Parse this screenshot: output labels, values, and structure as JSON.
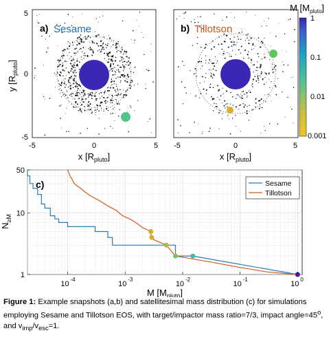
{
  "panel_a": {
    "letter": "a)",
    "name": "Sesame",
    "name_color": "#1f6fb2",
    "x_label_main": "x [R",
    "x_label_sub": "pluto",
    "x_label_end": "]",
    "y_label_main": "y [R",
    "y_label_sub": "pluto",
    "y_label_end": "]",
    "x_ticks": [
      "-5",
      "0",
      "5"
    ],
    "y_ticks": [
      "5",
      "0",
      "-5"
    ],
    "satellite_color": "#55c38b"
  },
  "panel_b": {
    "letter": "b)",
    "name": "Tillotson",
    "name_color": "#d1551f",
    "x_label_main": "x [R",
    "x_label_sub": "pluto",
    "x_label_end": "]",
    "x_ticks": [
      "-5",
      "0",
      "5"
    ],
    "satellite_colors": [
      "#62c65f",
      "#d6ad2e"
    ]
  },
  "colorbar": {
    "label_main": "M [M",
    "label_sub": "pluto",
    "label_end": "]",
    "ticks": [
      "1",
      "0.1",
      "0.01",
      "0.001"
    ],
    "scale": "log",
    "range": [
      0.001,
      1
    ]
  },
  "chart_data": {
    "type": "line",
    "panel_letter": "c)",
    "xlabel_main": "M [M",
    "xlabel_sub": "pluto",
    "xlabel_end": "]",
    "ylabel_main": "N",
    "ylabel_sub": "≥M",
    "x_scale": "log",
    "y_scale": "log",
    "xlim": [
      2e-05,
      1.2
    ],
    "ylim": [
      1,
      50
    ],
    "x_tick_labels": [
      "10",
      "10",
      "10",
      "10",
      "10"
    ],
    "x_tick_exponents": [
      "-4",
      "-3",
      "-2",
      "-1",
      "0"
    ],
    "y_tick_labels": [
      "1",
      "10",
      "50"
    ],
    "grid": true,
    "legend_position": "top-right",
    "series": [
      {
        "name": "Sesame",
        "color": "#2a7ab5",
        "x": [
          2e-05,
          2e-05,
          2.2e-05,
          2.2e-05,
          2.5e-05,
          2.5e-05,
          3e-05,
          3e-05,
          3.5e-05,
          3.5e-05,
          4e-05,
          4e-05,
          5e-05,
          5e-05,
          6e-05,
          6e-05,
          7e-05,
          7e-05,
          0.0001,
          0.0001,
          0.0003,
          0.0003,
          0.0005,
          0.0005,
          0.0006,
          0.0006,
          0.0075,
          0.0075,
          0.015,
          0.015,
          1.0
        ],
        "y": [
          50,
          40,
          40,
          30,
          30,
          25,
          25,
          20,
          20,
          14,
          14,
          12,
          12,
          9,
          9,
          8,
          8,
          7,
          7,
          6,
          6,
          5,
          5,
          4,
          4,
          3,
          3,
          2,
          2,
          2,
          1
        ],
        "markers": [
          [
            0.015,
            2
          ],
          [
            1.0,
            1
          ]
        ],
        "marker_colors": [
          "#4bb89a",
          "#3b2aa8"
        ]
      },
      {
        "name": "Tillotson",
        "color": "#d65a1e",
        "x": [
          0.0001,
          0.00011,
          0.00012,
          0.00013,
          0.00015,
          0.00017,
          0.0002,
          0.00025,
          0.00035,
          0.0005,
          0.0007,
          0.0009,
          0.0012,
          0.0016,
          0.002,
          0.0028,
          0.0028,
          0.0029,
          0.0029,
          0.0052,
          0.0075,
          0.03,
          0.1,
          0.3,
          1.0
        ],
        "y": [
          50,
          40,
          35,
          30,
          27,
          25,
          22,
          19,
          16,
          13,
          11,
          9,
          8,
          6.8,
          5.8,
          5,
          4.2,
          4.2,
          3.8,
          3,
          2,
          1.6,
          1.3,
          1.1,
          1
        ],
        "markers": [
          [
            0.0028,
            5
          ],
          [
            0.0029,
            4
          ],
          [
            0.0052,
            3
          ],
          [
            0.0075,
            2
          ],
          [
            1.0,
            1
          ]
        ],
        "marker_colors": [
          "#d6ad2e",
          "#cfb02d",
          "#b8b83a",
          "#7cc46a",
          "#3b2aa8"
        ]
      }
    ]
  },
  "caption": {
    "bold": "Figure 1:",
    "text": " Example snapshots (a,b) and satellitesimal mass distribution (c) for simulations employing Sesame and Tillotson EOS, with target/impactor mass ratio=7/3, impact angle=45",
    "sup_o": "o",
    "text2": ", and v",
    "sub_imp": "imp",
    "slash": "/v",
    "sub_esc": "esc",
    "end": "=1."
  }
}
